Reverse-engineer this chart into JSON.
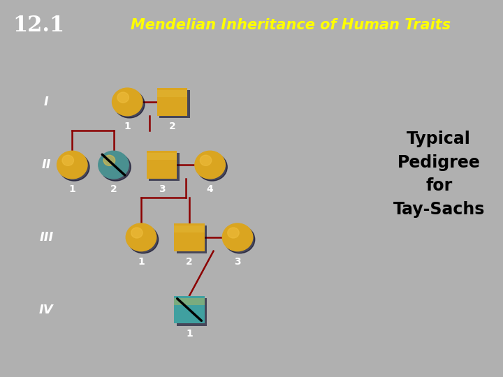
{
  "bg_outer": "#B0B0B0",
  "bg_pedigree": "#00008B",
  "header_num_bg": "#1a3570",
  "header_green_bg": "#2d7030",
  "header_text": "Mendelian Inheritance of Human Traits",
  "header_num": "12.1",
  "title_text": "Typical\nPedigree\nfor\nTay-Sachs",
  "line_color": "#8B0000",
  "female_color_main": "#DAA520",
  "female_color_dark": "#B8860B",
  "male_color_main": "#DAA520",
  "male_color_dark": "#B8860B",
  "carrier_color": "#4A9090",
  "affected_color": "#40A0A0",
  "label_color": "#FFFFFF",
  "gen_label_color": "#FFFFFF",
  "title_color": "#000000",
  "yellow_label": "#FFFF00"
}
